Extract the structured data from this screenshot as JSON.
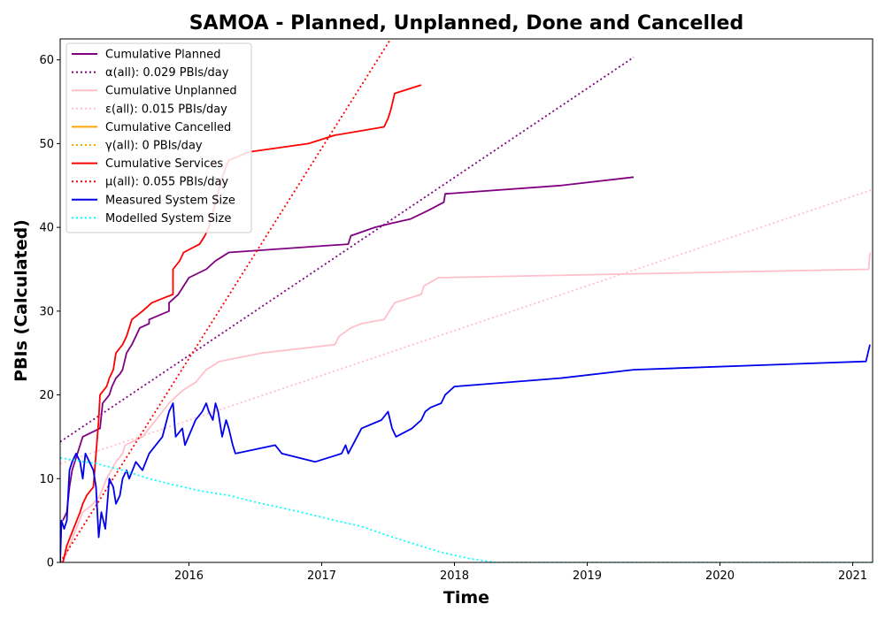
{
  "chart_data": {
    "type": "line",
    "title": "SAMOA - Planned, Unplanned, Done  and Cancelled",
    "xlabel": "Time",
    "ylabel": "PBIs (Calculated)",
    "xlim": [
      2015.03,
      2021.15
    ],
    "ylim": [
      0,
      62.5
    ],
    "x_ticks": [
      2016,
      2017,
      2018,
      2019,
      2020,
      2021
    ],
    "y_ticks": [
      0,
      10,
      20,
      30,
      40,
      50,
      60
    ],
    "legend_position": "top-left",
    "grid": false,
    "series": [
      {
        "name": "Cumulative Planned",
        "color": "#800080",
        "style": "solid",
        "points": [
          [
            2015.05,
            5
          ],
          [
            2015.08,
            6
          ],
          [
            2015.1,
            9
          ],
          [
            2015.12,
            11
          ],
          [
            2015.16,
            13
          ],
          [
            2015.2,
            15
          ],
          [
            2015.33,
            16
          ],
          [
            2015.35,
            19
          ],
          [
            2015.4,
            20
          ],
          [
            2015.42,
            21
          ],
          [
            2015.45,
            22
          ],
          [
            2015.48,
            22.5
          ],
          [
            2015.5,
            23
          ],
          [
            2015.53,
            25
          ],
          [
            2015.57,
            26
          ],
          [
            2015.6,
            27
          ],
          [
            2015.63,
            28
          ],
          [
            2015.7,
            28.5
          ],
          [
            2015.7,
            29
          ],
          [
            2015.85,
            30
          ],
          [
            2015.85,
            31
          ],
          [
            2015.92,
            32
          ],
          [
            2016.0,
            34
          ],
          [
            2016.13,
            35
          ],
          [
            2016.2,
            36
          ],
          [
            2016.25,
            36.5
          ],
          [
            2016.3,
            37
          ],
          [
            2017.2,
            38
          ],
          [
            2017.22,
            39
          ],
          [
            2017.4,
            40
          ],
          [
            2017.53,
            40.5
          ],
          [
            2017.67,
            41
          ],
          [
            2017.8,
            42
          ],
          [
            2017.92,
            43
          ],
          [
            2017.93,
            44
          ],
          [
            2018.8,
            45
          ],
          [
            2019.35,
            46
          ]
        ]
      },
      {
        "name": "α(all): 0.029 PBIs/day",
        "color": "#800080",
        "style": "dotted",
        "points": [
          [
            2015.03,
            14.4
          ],
          [
            2019.35,
            60.3
          ]
        ]
      },
      {
        "name": "Cumulative Unplanned",
        "color": "#ffc0cb",
        "style": "solid",
        "points": [
          [
            2015.05,
            0
          ],
          [
            2015.1,
            2
          ],
          [
            2015.15,
            4
          ],
          [
            2015.2,
            6
          ],
          [
            2015.28,
            7
          ],
          [
            2015.33,
            8
          ],
          [
            2015.38,
            10
          ],
          [
            2015.45,
            12
          ],
          [
            2015.5,
            13
          ],
          [
            2015.52,
            14
          ],
          [
            2015.65,
            15
          ],
          [
            2015.7,
            16
          ],
          [
            2015.75,
            17
          ],
          [
            2015.85,
            19
          ],
          [
            2015.95,
            20.5
          ],
          [
            2016.05,
            21.5
          ],
          [
            2016.13,
            23
          ],
          [
            2016.23,
            24
          ],
          [
            2016.55,
            25
          ],
          [
            2017.1,
            26
          ],
          [
            2017.13,
            27
          ],
          [
            2017.22,
            28
          ],
          [
            2017.3,
            28.5
          ],
          [
            2017.47,
            29
          ],
          [
            2017.55,
            31
          ],
          [
            2017.75,
            32
          ],
          [
            2017.77,
            33
          ],
          [
            2017.88,
            34
          ],
          [
            2021.12,
            35
          ],
          [
            2021.13,
            37
          ]
        ]
      },
      {
        "name": "ε(all): 0.015 PBIs/day",
        "color": "#ffc0cb",
        "style": "dotted",
        "points": [
          [
            2015.03,
            11.8
          ],
          [
            2021.15,
            44.5
          ]
        ]
      },
      {
        "name": "Cumulative Cancelled",
        "color": "#ffa500",
        "style": "solid",
        "points": []
      },
      {
        "name": "γ(all): 0 PBIs/day",
        "color": "#ffa500",
        "style": "dotted",
        "points": []
      },
      {
        "name": "Cumulative Services",
        "color": "#ff0000",
        "style": "solid",
        "points": [
          [
            2015.05,
            0
          ],
          [
            2015.08,
            2
          ],
          [
            2015.13,
            4
          ],
          [
            2015.18,
            6
          ],
          [
            2015.2,
            7
          ],
          [
            2015.23,
            8
          ],
          [
            2015.28,
            9
          ],
          [
            2015.3,
            13
          ],
          [
            2015.32,
            17
          ],
          [
            2015.33,
            20
          ],
          [
            2015.38,
            21
          ],
          [
            2015.4,
            22
          ],
          [
            2015.43,
            23
          ],
          [
            2015.45,
            25
          ],
          [
            2015.5,
            26
          ],
          [
            2015.53,
            27
          ],
          [
            2015.55,
            28
          ],
          [
            2015.57,
            29
          ],
          [
            2015.65,
            30
          ],
          [
            2015.72,
            31
          ],
          [
            2015.8,
            31.5
          ],
          [
            2015.88,
            32
          ],
          [
            2015.88,
            35
          ],
          [
            2015.93,
            36
          ],
          [
            2015.96,
            37
          ],
          [
            2016.08,
            38
          ],
          [
            2016.12,
            39
          ],
          [
            2016.15,
            40
          ],
          [
            2016.2,
            43
          ],
          [
            2016.25,
            46
          ],
          [
            2016.3,
            48
          ],
          [
            2016.45,
            49
          ],
          [
            2016.9,
            50
          ],
          [
            2017.1,
            51
          ],
          [
            2017.47,
            52
          ],
          [
            2017.5,
            53
          ],
          [
            2017.52,
            54
          ],
          [
            2017.55,
            56
          ],
          [
            2017.75,
            57
          ]
        ]
      },
      {
        "name": "μ(all): 0.055 PBIs/day",
        "color": "#ff0000",
        "style": "dotted",
        "points": [
          [
            2015.03,
            0
          ],
          [
            2017.52,
            62.5
          ]
        ]
      },
      {
        "name": "Measured System Size",
        "color": "#0000ee",
        "style": "solid",
        "points": [
          [
            2015.03,
            0
          ],
          [
            2015.04,
            5
          ],
          [
            2015.06,
            4
          ],
          [
            2015.08,
            5
          ],
          [
            2015.1,
            11
          ],
          [
            2015.12,
            12
          ],
          [
            2015.15,
            13
          ],
          [
            2015.18,
            12
          ],
          [
            2015.2,
            10
          ],
          [
            2015.22,
            13
          ],
          [
            2015.25,
            12
          ],
          [
            2015.28,
            11
          ],
          [
            2015.3,
            9
          ],
          [
            2015.32,
            3
          ],
          [
            2015.34,
            6
          ],
          [
            2015.37,
            4
          ],
          [
            2015.4,
            10
          ],
          [
            2015.43,
            9
          ],
          [
            2015.45,
            7
          ],
          [
            2015.48,
            8
          ],
          [
            2015.5,
            10
          ],
          [
            2015.53,
            11
          ],
          [
            2015.55,
            10
          ],
          [
            2015.6,
            12
          ],
          [
            2015.65,
            11
          ],
          [
            2015.7,
            13
          ],
          [
            2015.75,
            14
          ],
          [
            2015.8,
            15
          ],
          [
            2015.85,
            18
          ],
          [
            2015.88,
            19
          ],
          [
            2015.9,
            15
          ],
          [
            2015.95,
            16
          ],
          [
            2015.97,
            14
          ],
          [
            2016.05,
            17
          ],
          [
            2016.1,
            18
          ],
          [
            2016.13,
            19
          ],
          [
            2016.15,
            18
          ],
          [
            2016.18,
            17
          ],
          [
            2016.2,
            19
          ],
          [
            2016.22,
            18
          ],
          [
            2016.25,
            15
          ],
          [
            2016.28,
            17
          ],
          [
            2016.3,
            16
          ],
          [
            2016.33,
            14
          ],
          [
            2016.35,
            13
          ],
          [
            2016.65,
            14
          ],
          [
            2016.7,
            13
          ],
          [
            2016.95,
            12
          ],
          [
            2017.15,
            13
          ],
          [
            2017.18,
            14
          ],
          [
            2017.2,
            13
          ],
          [
            2017.3,
            16
          ],
          [
            2017.45,
            17
          ],
          [
            2017.5,
            18
          ],
          [
            2017.53,
            16
          ],
          [
            2017.56,
            15
          ],
          [
            2017.68,
            16
          ],
          [
            2017.75,
            17
          ],
          [
            2017.78,
            18
          ],
          [
            2017.82,
            18.5
          ],
          [
            2017.9,
            19
          ],
          [
            2017.93,
            20
          ],
          [
            2018.0,
            21
          ],
          [
            2018.8,
            22
          ],
          [
            2019.35,
            23
          ],
          [
            2021.1,
            24
          ],
          [
            2021.13,
            26
          ]
        ]
      },
      {
        "name": "Modelled System Size",
        "color": "#00ffff",
        "style": "dotted",
        "points": [
          [
            2015.03,
            12.5
          ],
          [
            2015.1,
            12.3
          ],
          [
            2015.3,
            11.8
          ],
          [
            2015.5,
            11
          ],
          [
            2015.7,
            10
          ],
          [
            2015.9,
            9.2
          ],
          [
            2016.1,
            8.5
          ],
          [
            2016.3,
            8
          ],
          [
            2016.5,
            7.2
          ],
          [
            2016.7,
            6.5
          ],
          [
            2016.9,
            5.8
          ],
          [
            2017.1,
            5
          ],
          [
            2017.3,
            4.3
          ],
          [
            2017.5,
            3.2
          ],
          [
            2017.7,
            2.2
          ],
          [
            2017.9,
            1.2
          ],
          [
            2018.1,
            0.5
          ],
          [
            2018.3,
            0
          ],
          [
            2021.15,
            0
          ]
        ]
      }
    ]
  }
}
